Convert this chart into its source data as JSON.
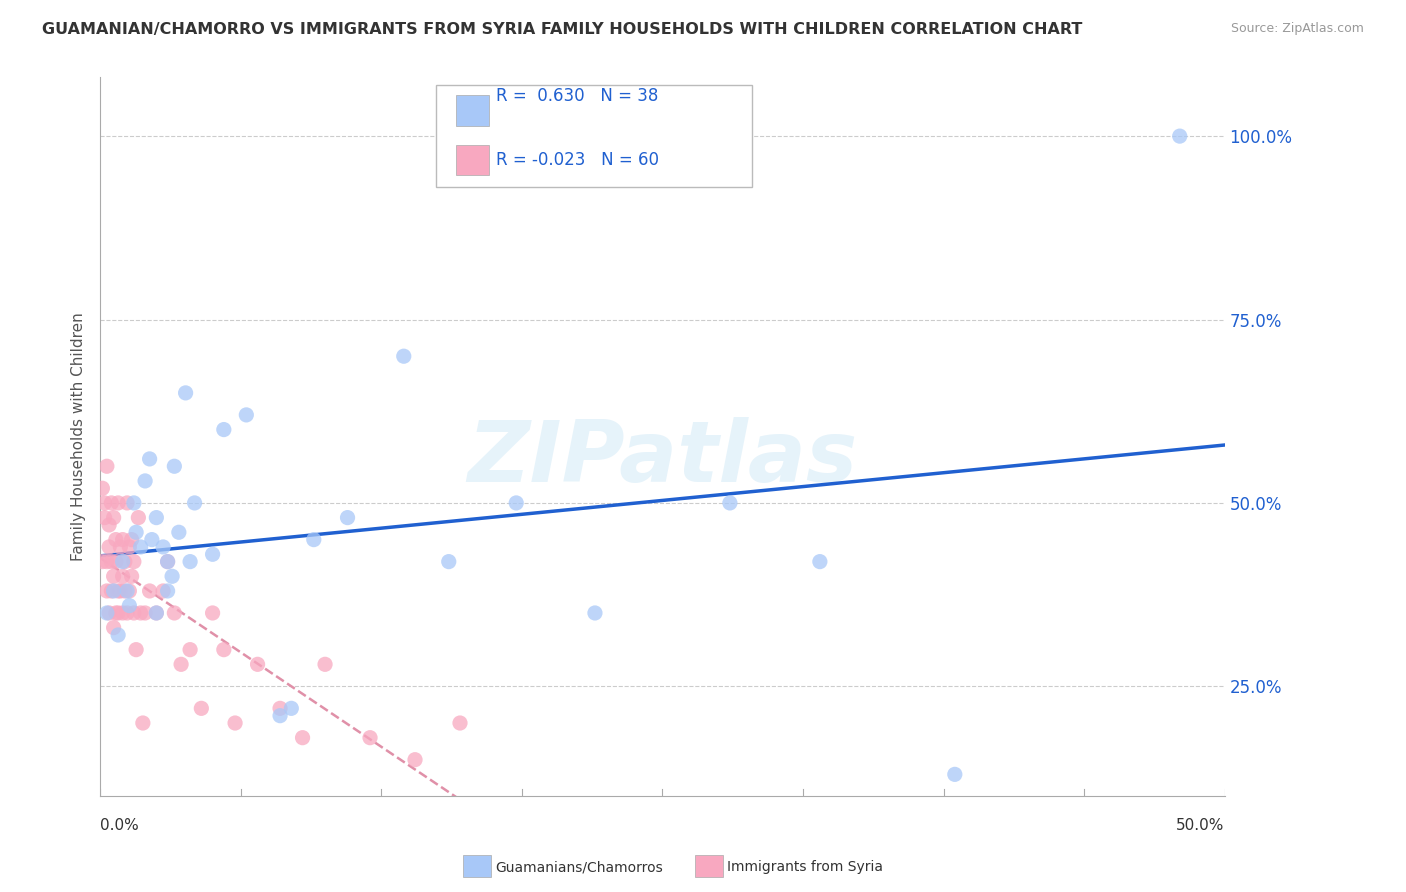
{
  "title": "GUAMANIAN/CHAMORRO VS IMMIGRANTS FROM SYRIA FAMILY HOUSEHOLDS WITH CHILDREN CORRELATION CHART",
  "source": "Source: ZipAtlas.com",
  "ylabel": "Family Households with Children",
  "ytick_vals": [
    0.25,
    0.5,
    0.75,
    1.0
  ],
  "xlim": [
    0.0,
    0.5
  ],
  "ylim": [
    0.1,
    1.08
  ],
  "blue_R": 0.63,
  "blue_N": 38,
  "pink_R": -0.023,
  "pink_N": 60,
  "blue_label": "Guamanians/Chamorros",
  "pink_label": "Immigrants from Syria",
  "blue_color": "#a8c8f8",
  "pink_color": "#f8a8c0",
  "blue_line_color": "#2060d0",
  "pink_line_color": "#e090a8",
  "legend_R_color": "#2060d0",
  "background_color": "#ffffff",
  "grid_color": "#cccccc",
  "blue_scatter_x": [
    0.003,
    0.006,
    0.008,
    0.01,
    0.012,
    0.013,
    0.015,
    0.016,
    0.018,
    0.02,
    0.022,
    0.023,
    0.025,
    0.025,
    0.028,
    0.03,
    0.03,
    0.032,
    0.033,
    0.035,
    0.038,
    0.04,
    0.042,
    0.05,
    0.055,
    0.065,
    0.08,
    0.085,
    0.095,
    0.11,
    0.135,
    0.155,
    0.185,
    0.22,
    0.28,
    0.32,
    0.38,
    0.48
  ],
  "blue_scatter_y": [
    0.35,
    0.38,
    0.32,
    0.42,
    0.38,
    0.36,
    0.5,
    0.46,
    0.44,
    0.53,
    0.56,
    0.45,
    0.48,
    0.35,
    0.44,
    0.42,
    0.38,
    0.4,
    0.55,
    0.46,
    0.65,
    0.42,
    0.5,
    0.43,
    0.6,
    0.62,
    0.21,
    0.22,
    0.45,
    0.48,
    0.7,
    0.42,
    0.5,
    0.35,
    0.5,
    0.42,
    0.13,
    1.0
  ],
  "pink_scatter_x": [
    0.001,
    0.001,
    0.002,
    0.002,
    0.003,
    0.003,
    0.003,
    0.004,
    0.004,
    0.004,
    0.005,
    0.005,
    0.005,
    0.006,
    0.006,
    0.006,
    0.007,
    0.007,
    0.007,
    0.008,
    0.008,
    0.008,
    0.009,
    0.009,
    0.01,
    0.01,
    0.01,
    0.011,
    0.011,
    0.012,
    0.012,
    0.013,
    0.013,
    0.014,
    0.014,
    0.015,
    0.015,
    0.016,
    0.017,
    0.018,
    0.019,
    0.02,
    0.022,
    0.025,
    0.028,
    0.03,
    0.033,
    0.036,
    0.04,
    0.045,
    0.05,
    0.055,
    0.06,
    0.07,
    0.08,
    0.09,
    0.1,
    0.12,
    0.14,
    0.16
  ],
  "pink_scatter_y": [
    0.42,
    0.52,
    0.48,
    0.5,
    0.55,
    0.42,
    0.38,
    0.47,
    0.35,
    0.44,
    0.5,
    0.38,
    0.42,
    0.33,
    0.48,
    0.4,
    0.45,
    0.35,
    0.42,
    0.38,
    0.5,
    0.35,
    0.44,
    0.38,
    0.45,
    0.4,
    0.35,
    0.42,
    0.38,
    0.5,
    0.35,
    0.44,
    0.38,
    0.45,
    0.4,
    0.42,
    0.35,
    0.3,
    0.48,
    0.35,
    0.2,
    0.35,
    0.38,
    0.35,
    0.38,
    0.42,
    0.35,
    0.28,
    0.3,
    0.22,
    0.35,
    0.3,
    0.2,
    0.28,
    0.22,
    0.18,
    0.28,
    0.18,
    0.15,
    0.2
  ]
}
